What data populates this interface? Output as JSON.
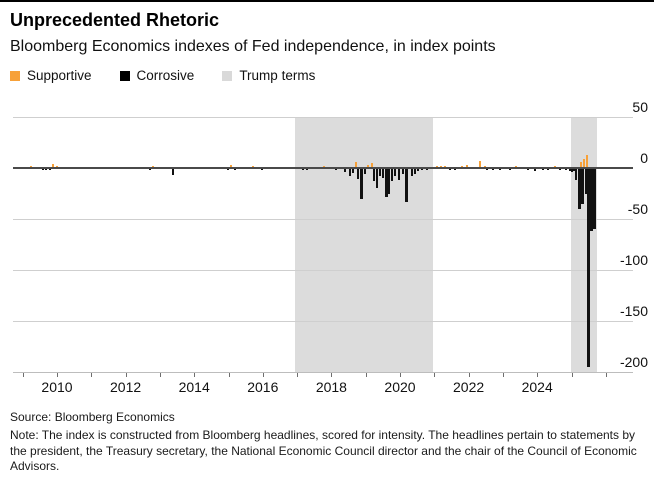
{
  "header": {
    "title": "Unprecedented Rhetoric",
    "subtitle": "Bloomberg Economics indexes of Fed independence, in index points"
  },
  "legend": [
    {
      "label": "Supportive",
      "color": "#f7a139"
    },
    {
      "label": "Corrosive",
      "color": "#000000"
    },
    {
      "label": "Trump terms",
      "color": "#d9d9d9"
    }
  ],
  "colors": {
    "supportive": "#f7a139",
    "corrosive": "#111111",
    "band": "#dcdcdc",
    "gridline": "#cfcfcf",
    "zeroline": "#4a4a4a"
  },
  "chart_data": {
    "type": "bar",
    "title": "Unprecedented Rhetoric",
    "subtitle": "Bloomberg Economics indexes of Fed independence, in index points",
    "ylabel": "index points",
    "y_axis": {
      "ticks": [
        50,
        0,
        -50,
        -100,
        -150,
        -200
      ],
      "range": [
        50,
        -200
      ],
      "side": "right"
    },
    "x_axis": {
      "tick_years": [
        2009,
        2010,
        2011,
        2012,
        2013,
        2014,
        2015,
        2016,
        2017,
        2018,
        2019,
        2020,
        2021,
        2022,
        2023,
        2024,
        2025,
        2026
      ],
      "label_years": [
        2010,
        2012,
        2014,
        2016,
        2018,
        2020,
        2022,
        2024
      ],
      "range": [
        2008.72,
        2026.2
      ]
    },
    "shaded_regions": [
      {
        "label": "Trump term 1",
        "from": 2016.95,
        "to": 2020.95
      },
      {
        "label": "Trump term 2",
        "from": 2024.98,
        "to": 2025.73
      }
    ],
    "series": [
      {
        "name": "Supportive",
        "color": "#f7a139",
        "points": [
          [
            2009.24,
            2
          ],
          [
            2009.88,
            4
          ],
          [
            2010.0,
            2
          ],
          [
            2012.8,
            2
          ],
          [
            2015.07,
            3
          ],
          [
            2015.7,
            2
          ],
          [
            2017.78,
            2
          ],
          [
            2018.72,
            6
          ],
          [
            2019.07,
            3
          ],
          [
            2019.18,
            5
          ],
          [
            2021.08,
            2
          ],
          [
            2021.2,
            2
          ],
          [
            2021.32,
            2
          ],
          [
            2021.81,
            2
          ],
          [
            2021.95,
            3
          ],
          [
            2022.33,
            7
          ],
          [
            2022.48,
            2
          ],
          [
            2023.38,
            2
          ],
          [
            2024.52,
            2
          ],
          [
            2025.27,
            6
          ],
          [
            2025.36,
            9
          ],
          [
            2025.45,
            13
          ]
        ]
      },
      {
        "name": "Corrosive",
        "color": "#111111",
        "points": [
          [
            2009.59,
            -2
          ],
          [
            2009.68,
            -2
          ],
          [
            2009.8,
            -2
          ],
          [
            2012.7,
            -2
          ],
          [
            2013.38,
            -7
          ],
          [
            2014.99,
            -2
          ],
          [
            2015.2,
            -2
          ],
          [
            2015.98,
            -2
          ],
          [
            2017.17,
            -2
          ],
          [
            2017.3,
            -2
          ],
          [
            2018.13,
            -2
          ],
          [
            2018.4,
            -4
          ],
          [
            2018.54,
            -8
          ],
          [
            2018.63,
            -5
          ],
          [
            2018.78,
            -11
          ],
          [
            2018.89,
            -30
          ],
          [
            2018.98,
            -6
          ],
          [
            2019.24,
            -13
          ],
          [
            2019.33,
            -20
          ],
          [
            2019.42,
            -8
          ],
          [
            2019.5,
            -10
          ],
          [
            2019.62,
            -28
          ],
          [
            2019.68,
            -25
          ],
          [
            2019.77,
            -13
          ],
          [
            2019.85,
            -8
          ],
          [
            2019.97,
            -12
          ],
          [
            2020.09,
            -6
          ],
          [
            2020.2,
            -33
          ],
          [
            2020.35,
            -8
          ],
          [
            2020.44,
            -6
          ],
          [
            2020.52,
            -3
          ],
          [
            2020.64,
            -2
          ],
          [
            2020.79,
            -2
          ],
          [
            2021.46,
            -2
          ],
          [
            2021.61,
            -1
          ],
          [
            2022.54,
            -2
          ],
          [
            2022.71,
            -1
          ],
          [
            2022.92,
            -2
          ],
          [
            2023.21,
            -2
          ],
          [
            2023.73,
            -2
          ],
          [
            2023.94,
            -3
          ],
          [
            2024.17,
            -2
          ],
          [
            2024.31,
            -2
          ],
          [
            2024.66,
            -2
          ],
          [
            2024.84,
            -2
          ],
          [
            2024.96,
            -3
          ],
          [
            2025.01,
            -4
          ],
          [
            2025.07,
            -3
          ],
          [
            2025.13,
            -12
          ],
          [
            2025.22,
            -40
          ],
          [
            2025.31,
            -35
          ],
          [
            2025.41,
            -25
          ],
          [
            2025.51,
            -195
          ],
          [
            2025.57,
            -62
          ],
          [
            2025.62,
            -45
          ],
          [
            2025.68,
            -60
          ]
        ]
      }
    ],
    "grid": true,
    "legend_position": "top-left"
  },
  "footer": {
    "source": "Source: Bloomberg Economics",
    "note": "Note: The index is constructed from Bloomberg headlines, scored for intensity. The headlines pertain to statements by the president, the Treasury secretary, the National Economic Council director and the chair of the Council of Economic Advisors."
  }
}
